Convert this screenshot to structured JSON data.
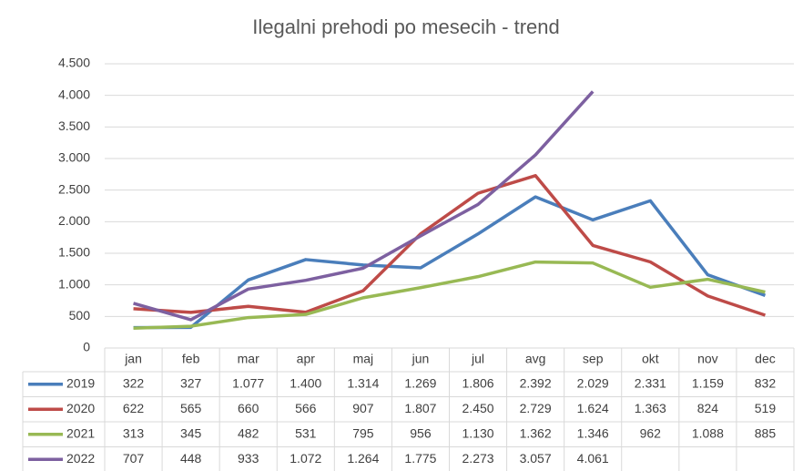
{
  "chart_data": {
    "type": "line",
    "title": "Ilegalni prehodi po mesecih - trend",
    "categories": [
      "jan",
      "feb",
      "mar",
      "apr",
      "maj",
      "jun",
      "jul",
      "avg",
      "sep",
      "okt",
      "nov",
      "dec"
    ],
    "series": [
      {
        "name": "2019",
        "color": "#4a7ebb",
        "values": [
          322,
          327,
          1077,
          1400,
          1314,
          1269,
          1806,
          2392,
          2029,
          2331,
          1159,
          832
        ],
        "value_labels": [
          "322",
          "327",
          "1.077",
          "1.400",
          "1.314",
          "1.269",
          "1.806",
          "2.392",
          "2.029",
          "2.331",
          "1.159",
          "832"
        ]
      },
      {
        "name": "2020",
        "color": "#be4b48",
        "values": [
          622,
          565,
          660,
          566,
          907,
          1807,
          2450,
          2729,
          1624,
          1363,
          824,
          519
        ],
        "value_labels": [
          "622",
          "565",
          "660",
          "566",
          "907",
          "1.807",
          "2.450",
          "2.729",
          "1.624",
          "1.363",
          "824",
          "519"
        ]
      },
      {
        "name": "2021",
        "color": "#98b954",
        "values": [
          313,
          345,
          482,
          531,
          795,
          956,
          1130,
          1362,
          1346,
          962,
          1088,
          885
        ],
        "value_labels": [
          "313",
          "345",
          "482",
          "531",
          "795",
          "956",
          "1.130",
          "1.362",
          "1.346",
          "962",
          "1.088",
          "885"
        ]
      },
      {
        "name": "2022",
        "color": "#7d60a0",
        "values": [
          707,
          448,
          933,
          1072,
          1264,
          1775,
          2273,
          3057,
          4061,
          null,
          null,
          null
        ],
        "value_labels": [
          "707",
          "448",
          "933",
          "1.072",
          "1.264",
          "1.775",
          "2.273",
          "3.057",
          "4.061",
          null,
          null,
          null
        ]
      }
    ],
    "ylim": [
      0,
      4500
    ],
    "yticks": [
      0,
      500,
      {
        "value": 1000,
        "label": "1.000"
      },
      {
        "value": 1500,
        "label": "1.500"
      },
      {
        "value": 2000,
        "label": "2.000"
      },
      {
        "value": 2500,
        "label": "2.500"
      },
      {
        "value": 3000,
        "label": "3.000"
      },
      {
        "value": 3500,
        "label": "3.500"
      },
      {
        "value": 4000,
        "label": "4.000"
      },
      {
        "value": 4500,
        "label": "4.500"
      }
    ],
    "grid": true
  }
}
